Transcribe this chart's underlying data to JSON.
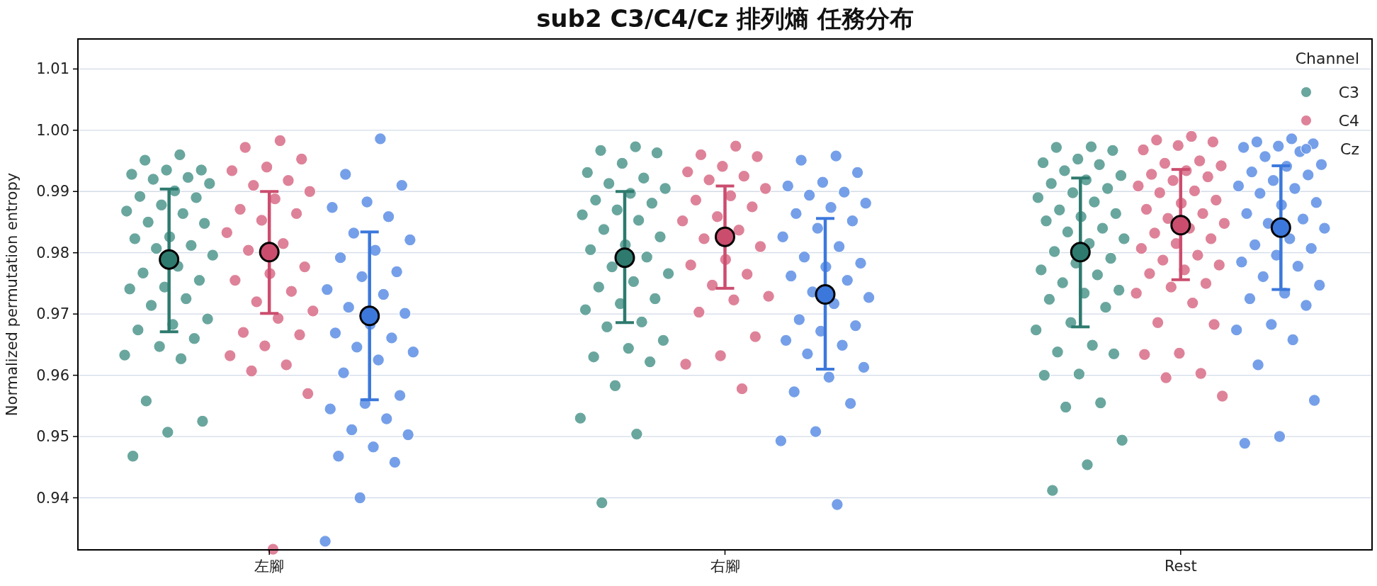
{
  "chart_data": {
    "type": "scatter",
    "title": "sub2 C3/C4/Cz 排列熵 任務分布",
    "ylabel": "Normalized permutation entropy",
    "legend_title": "Channel",
    "legend": "top right",
    "grid": "y",
    "marker": "circle",
    "categories": [
      "左腳",
      "右腳",
      "Rest"
    ],
    "ylim": [
      0.9315,
      1.0149
    ],
    "yticks": [
      0.94,
      0.95,
      0.96,
      0.97,
      0.98,
      0.99,
      {
        "value": 1.0,
        "label": "1.00"
      },
      1.01
    ],
    "series": [
      {
        "name": "C3",
        "color": "#5e9f97",
        "x": [
          "左腳",
          "左腳",
          "左腳",
          "左腳",
          "左腳",
          "左腳",
          "左腳",
          "左腳",
          "左腳",
          "左腳",
          "左腳",
          "左腳",
          "左腳",
          "左腳",
          "左腳",
          "左腳",
          "左腳",
          "左腳",
          "左腳",
          "左腳",
          "左腳",
          "左腳",
          "左腳",
          "左腳",
          "左腳",
          "左腳",
          "左腳",
          "左腳",
          "左腳",
          "左腳",
          "左腳",
          "左腳",
          "左腳",
          "左腳",
          "左腳",
          "左腳",
          "左腳",
          "左腳",
          "左腳",
          "右腳",
          "右腳",
          "右腳",
          "右腳",
          "右腳",
          "右腳",
          "右腳",
          "右腳",
          "右腳",
          "右腳",
          "右腳",
          "右腳",
          "右腳",
          "右腳",
          "右腳",
          "右腳",
          "右腳",
          "右腳",
          "右腳",
          "右腳",
          "右腳",
          "右腳",
          "右腳",
          "右腳",
          "右腳",
          "右腳",
          "右腳",
          "右腳",
          "右腳",
          "右腳",
          "右腳",
          "右腳",
          "右腳",
          "右腳",
          "右腳",
          "右腳",
          "Rest",
          "Rest",
          "Rest",
          "Rest",
          "Rest",
          "Rest",
          "Rest",
          "Rest",
          "Rest",
          "Rest",
          "Rest",
          "Rest",
          "Rest",
          "Rest",
          "Rest",
          "Rest",
          "Rest",
          "Rest",
          "Rest",
          "Rest",
          "Rest",
          "Rest",
          "Rest",
          "Rest",
          "Rest",
          "Rest",
          "Rest",
          "Rest",
          "Rest",
          "Rest",
          "Rest",
          "Rest",
          "Rest",
          "Rest",
          "Rest",
          "Rest",
          "Rest",
          "Rest",
          "Rest",
          "Rest",
          "Rest",
          "Rest",
          "Rest",
          "Rest"
        ],
        "values": [
          0.996,
          0.9951,
          0.9935,
          0.9935,
          0.9928,
          0.9923,
          0.992,
          0.9913,
          0.9901,
          0.9892,
          0.989,
          0.9878,
          0.9868,
          0.9864,
          0.985,
          0.9848,
          0.9826,
          0.9823,
          0.9812,
          0.9807,
          0.9796,
          0.9778,
          0.9767,
          0.9755,
          0.9744,
          0.9741,
          0.9725,
          0.9714,
          0.9692,
          0.9683,
          0.9674,
          0.966,
          0.9647,
          0.9633,
          0.9627,
          0.9558,
          0.9525,
          0.9507,
          0.9468,
          0.9973,
          0.9967,
          0.9963,
          0.9946,
          0.9931,
          0.9922,
          0.9913,
          0.9905,
          0.9897,
          0.9886,
          0.9881,
          0.987,
          0.9862,
          0.9853,
          0.9838,
          0.9826,
          0.9813,
          0.9805,
          0.9793,
          0.9777,
          0.9766,
          0.9753,
          0.9744,
          0.9725,
          0.9717,
          0.9707,
          0.9687,
          0.9679,
          0.9657,
          0.9644,
          0.963,
          0.9622,
          0.9583,
          0.953,
          0.9504,
          0.9392,
          0.9973,
          0.9972,
          0.9967,
          0.9953,
          0.9947,
          0.9944,
          0.9934,
          0.9926,
          0.9919,
          0.9913,
          0.9905,
          0.9898,
          0.989,
          0.9883,
          0.987,
          0.9864,
          0.9859,
          0.9852,
          0.984,
          0.9834,
          0.9823,
          0.9815,
          0.9802,
          0.9791,
          0.9783,
          0.9772,
          0.9764,
          0.9751,
          0.9739,
          0.9734,
          0.9724,
          0.9711,
          0.9686,
          0.9674,
          0.9649,
          0.9638,
          0.9635,
          0.9602,
          0.96,
          0.9555,
          0.9548,
          0.9494,
          0.9454,
          0.9412
        ]
      },
      {
        "name": "C4",
        "color": "#dc7891",
        "x": [
          "左腳",
          "左腳",
          "左腳",
          "左腳",
          "左腳",
          "左腳",
          "左腳",
          "左腳",
          "左腳",
          "左腳",
          "左腳",
          "左腳",
          "左腳",
          "左腳",
          "左腳",
          "左腳",
          "左腳",
          "左腳",
          "左腳",
          "左腳",
          "左腳",
          "左腳",
          "左腳",
          "左腳",
          "左腳",
          "左腳",
          "左腳",
          "左腳",
          "左腳",
          "左腳",
          "右腳",
          "右腳",
          "右腳",
          "右腳",
          "右腳",
          "右腳",
          "右腳",
          "右腳",
          "右腳",
          "右腳",
          "右腳",
          "右腳",
          "右腳",
          "右腳",
          "右腳",
          "右腳",
          "右腳",
          "右腳",
          "右腳",
          "右腳",
          "右腳",
          "右腳",
          "右腳",
          "右腳",
          "右腳",
          "右腳",
          "右腳",
          "Rest",
          "Rest",
          "Rest",
          "Rest",
          "Rest",
          "Rest",
          "Rest",
          "Rest",
          "Rest",
          "Rest",
          "Rest",
          "Rest",
          "Rest",
          "Rest",
          "Rest",
          "Rest",
          "Rest",
          "Rest",
          "Rest",
          "Rest",
          "Rest",
          "Rest",
          "Rest",
          "Rest",
          "Rest",
          "Rest",
          "Rest",
          "Rest",
          "Rest",
          "Rest",
          "Rest",
          "Rest",
          "Rest",
          "Rest",
          "Rest",
          "Rest",
          "Rest",
          "Rest",
          "Rest",
          "Rest",
          "Rest",
          "Rest"
        ],
        "values": [
          0.9983,
          0.9972,
          0.9953,
          0.994,
          0.9934,
          0.9918,
          0.991,
          0.99,
          0.9888,
          0.9871,
          0.9864,
          0.9853,
          0.9833,
          0.9815,
          0.9804,
          0.9777,
          0.9766,
          0.9755,
          0.9737,
          0.972,
          0.9705,
          0.9693,
          0.967,
          0.9666,
          0.9648,
          0.9632,
          0.9617,
          0.9607,
          0.957,
          0.9316,
          0.9974,
          0.996,
          0.9957,
          0.9941,
          0.9932,
          0.9925,
          0.9919,
          0.9905,
          0.9893,
          0.9886,
          0.9875,
          0.9859,
          0.9852,
          0.9837,
          0.9823,
          0.981,
          0.9789,
          0.978,
          0.9765,
          0.9747,
          0.9729,
          0.9723,
          0.9703,
          0.9663,
          0.9632,
          0.9618,
          0.9578,
          0.999,
          0.9984,
          0.9981,
          0.9975,
          0.9968,
          0.995,
          0.9946,
          0.9942,
          0.9934,
          0.9928,
          0.9924,
          0.9918,
          0.9909,
          0.9901,
          0.9898,
          0.9886,
          0.9881,
          0.9871,
          0.9864,
          0.9856,
          0.9848,
          0.984,
          0.9832,
          0.9823,
          0.9815,
          0.9807,
          0.9796,
          0.9788,
          0.978,
          0.9772,
          0.9766,
          0.975,
          0.9744,
          0.9734,
          0.9718,
          0.9686,
          0.9683,
          0.9636,
          0.9634,
          0.9603,
          0.9596,
          0.9566
        ]
      },
      {
        "name": "Cz",
        "color": "#6b98e6",
        "x": [
          "左腳",
          "左腳",
          "左腳",
          "左腳",
          "左腳",
          "左腳",
          "左腳",
          "左腳",
          "左腳",
          "左腳",
          "左腳",
          "左腳",
          "左腳",
          "左腳",
          "左腳",
          "左腳",
          "左腳",
          "左腳",
          "左腳",
          "左腳",
          "左腳",
          "左腳",
          "左腳",
          "左腳",
          "左腳",
          "左腳",
          "左腳",
          "左腳",
          "左腳",
          "左腳",
          "左腳",
          "左腳",
          "左腳",
          "左腳",
          "右腳",
          "右腳",
          "右腳",
          "右腳",
          "右腳",
          "右腳",
          "右腳",
          "右腳",
          "右腳",
          "右腳",
          "右腳",
          "右腳",
          "右腳",
          "右腳",
          "右腳",
          "右腳",
          "右腳",
          "右腳",
          "右腳",
          "右腳",
          "右腳",
          "右腳",
          "右腳",
          "右腳",
          "右腳",
          "右腳",
          "右腳",
          "右腳",
          "右腳",
          "右腳",
          "右腳",
          "右腳",
          "右腳",
          "右腳",
          "右腳",
          "Rest",
          "Rest",
          "Rest",
          "Rest",
          "Rest",
          "Rest",
          "Rest",
          "Rest",
          "Rest",
          "Rest",
          "Rest",
          "Rest",
          "Rest",
          "Rest",
          "Rest",
          "Rest",
          "Rest",
          "Rest",
          "Rest",
          "Rest",
          "Rest",
          "Rest",
          "Rest",
          "Rest",
          "Rest",
          "Rest",
          "Rest",
          "Rest",
          "Rest",
          "Rest",
          "Rest",
          "Rest",
          "Rest",
          "Rest",
          "Rest",
          "Rest",
          "Rest",
          "Rest",
          "Rest"
        ],
        "values": [
          0.9986,
          0.9928,
          0.991,
          0.9883,
          0.9874,
          0.9859,
          0.9832,
          0.9821,
          0.9804,
          0.9792,
          0.9769,
          0.9761,
          0.974,
          0.9732,
          0.9711,
          0.9701,
          0.9683,
          0.9669,
          0.9661,
          0.9646,
          0.9638,
          0.9625,
          0.9604,
          0.9567,
          0.9554,
          0.9545,
          0.9529,
          0.9511,
          0.9503,
          0.9483,
          0.9468,
          0.9458,
          0.94,
          0.9329,
          0.9958,
          0.9951,
          0.9931,
          0.9915,
          0.9909,
          0.9899,
          0.9894,
          0.9881,
          0.9874,
          0.9864,
          0.9852,
          0.984,
          0.9826,
          0.981,
          0.9793,
          0.9783,
          0.9777,
          0.9762,
          0.9755,
          0.9736,
          0.9727,
          0.9717,
          0.9691,
          0.9681,
          0.9672,
          0.9657,
          0.9649,
          0.9635,
          0.9613,
          0.9597,
          0.9573,
          0.9554,
          0.9508,
          0.9493,
          0.9389,
          0.9986,
          0.9981,
          0.9978,
          0.9974,
          0.9972,
          0.9965,
          0.9957,
          0.9944,
          0.9941,
          0.9932,
          0.9927,
          0.9918,
          0.9909,
          0.9905,
          0.9897,
          0.9882,
          0.9878,
          0.9864,
          0.9855,
          0.9848,
          0.984,
          0.9823,
          0.9813,
          0.9807,
          0.9796,
          0.9785,
          0.9778,
          0.9761,
          0.9747,
          0.9734,
          0.9725,
          0.9714,
          0.9683,
          0.9674,
          0.9658,
          0.9617,
          0.9559,
          0.95,
          0.9489
        ]
      },
      {
        "color": "#2e7a6e",
        "x": [
          "左腳",
          "右腳",
          "Rest"
        ],
        "values": [
          0.9789,
          0.9792,
          0.9801
        ],
        "errors": [
          [
            0.9671,
            0.9904
          ],
          [
            0.9686,
            0.99
          ],
          [
            0.9679,
            0.9922
          ]
        ]
      },
      {
        "color": "#cb4d6e",
        "x": [
          "左腳",
          "右腳",
          "Rest"
        ],
        "values": [
          0.9801,
          0.9826,
          0.9845
        ],
        "errors": [
          [
            0.9701,
            0.99
          ],
          [
            0.9742,
            0.9909
          ],
          [
            0.9756,
            0.9936
          ]
        ]
      },
      {
        "color": "#3c78dc",
        "x": [
          "左腳",
          "右腳",
          "Rest"
        ],
        "values": [
          0.9697,
          0.9732,
          0.9841
        ],
        "errors": [
          [
            0.956,
            0.9834
          ],
          [
            0.961,
            0.9856
          ],
          [
            0.974,
            0.9942
          ]
        ]
      }
    ]
  }
}
